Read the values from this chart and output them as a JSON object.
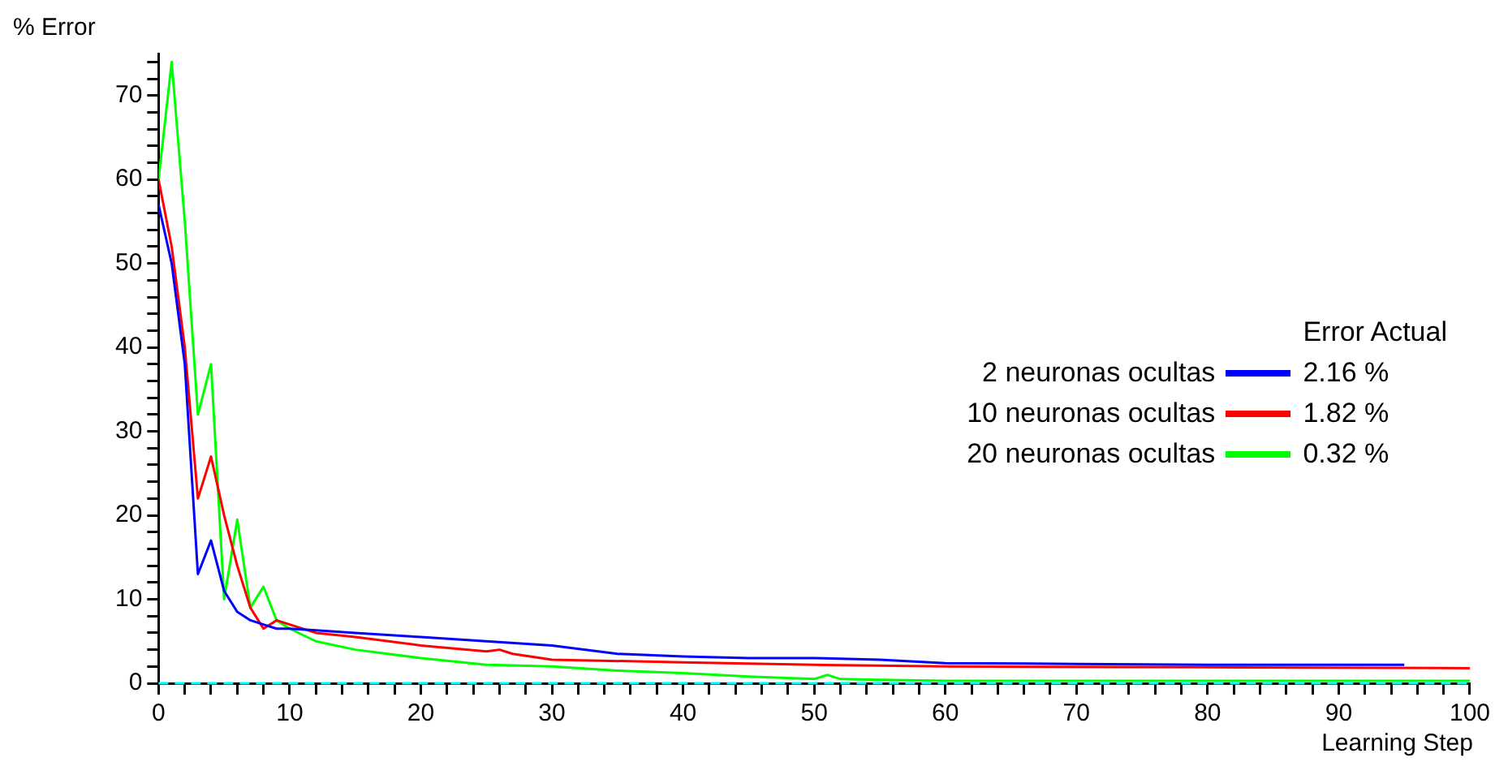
{
  "chart_data": {
    "type": "line",
    "ylabel": "% Error",
    "xlabel": "Learning Step",
    "legend_title": "Error Actual",
    "legend": "right",
    "grid": false,
    "marker": "none",
    "line_style": "solid",
    "xlim": [
      0,
      100
    ],
    "ylim": [
      0,
      75
    ],
    "xticks": [
      0,
      {
        "value": 2,
        "label": null
      },
      {
        "value": 4,
        "label": null
      },
      {
        "value": 6,
        "label": null
      },
      {
        "value": 8,
        "label": null
      },
      10,
      {
        "value": 12,
        "label": null
      },
      {
        "value": 14,
        "label": null
      },
      {
        "value": 16,
        "label": null
      },
      {
        "value": 18,
        "label": null
      },
      20,
      {
        "value": 22,
        "label": null
      },
      {
        "value": 24,
        "label": null
      },
      {
        "value": 26,
        "label": null
      },
      {
        "value": 28,
        "label": null
      },
      30,
      {
        "value": 32,
        "label": null
      },
      {
        "value": 34,
        "label": null
      },
      {
        "value": 36,
        "label": null
      },
      {
        "value": 38,
        "label": null
      },
      40,
      {
        "value": 42,
        "label": null
      },
      {
        "value": 44,
        "label": null
      },
      {
        "value": 46,
        "label": null
      },
      {
        "value": 48,
        "label": null
      },
      50,
      {
        "value": 52,
        "label": null
      },
      {
        "value": 54,
        "label": null
      },
      {
        "value": 56,
        "label": null
      },
      {
        "value": 58,
        "label": null
      },
      60,
      {
        "value": 62,
        "label": null
      },
      {
        "value": 64,
        "label": null
      },
      {
        "value": 66,
        "label": null
      },
      {
        "value": 68,
        "label": null
      },
      70,
      {
        "value": 72,
        "label": null
      },
      {
        "value": 74,
        "label": null
      },
      {
        "value": 76,
        "label": null
      },
      {
        "value": 78,
        "label": null
      },
      80,
      {
        "value": 82,
        "label": null
      },
      {
        "value": 84,
        "label": null
      },
      {
        "value": 86,
        "label": null
      },
      {
        "value": 88,
        "label": null
      },
      90,
      {
        "value": 92,
        "label": null
      },
      {
        "value": 94,
        "label": null
      },
      {
        "value": 96,
        "label": null
      },
      {
        "value": 98,
        "label": null
      },
      100
    ],
    "yticks": [
      0,
      {
        "value": 2,
        "label": null
      },
      {
        "value": 4,
        "label": null
      },
      {
        "value": 6,
        "label": null
      },
      {
        "value": 8,
        "label": null
      },
      10,
      {
        "value": 12,
        "label": null
      },
      {
        "value": 14,
        "label": null
      },
      {
        "value": 16,
        "label": null
      },
      {
        "value": 18,
        "label": null
      },
      20,
      {
        "value": 22,
        "label": null
      },
      {
        "value": 24,
        "label": null
      },
      {
        "value": 26,
        "label": null
      },
      {
        "value": 28,
        "label": null
      },
      30,
      {
        "value": 32,
        "label": null
      },
      {
        "value": 34,
        "label": null
      },
      {
        "value": 36,
        "label": null
      },
      {
        "value": 38,
        "label": null
      },
      40,
      {
        "value": 42,
        "label": null
      },
      {
        "value": 44,
        "label": null
      },
      {
        "value": 46,
        "label": null
      },
      {
        "value": 48,
        "label": null
      },
      50,
      {
        "value": 52,
        "label": null
      },
      {
        "value": 54,
        "label": null
      },
      {
        "value": 56,
        "label": null
      },
      {
        "value": 58,
        "label": null
      },
      60,
      {
        "value": 62,
        "label": null
      },
      {
        "value": 64,
        "label": null
      },
      {
        "value": 66,
        "label": null
      },
      {
        "value": 68,
        "label": null
      },
      70,
      {
        "value": 72,
        "label": null
      },
      {
        "value": 74,
        "label": null
      }
    ],
    "ref_lines": [
      {
        "axis": "y",
        "value": 0,
        "color": "#00ffff",
        "line_style": "dashed"
      }
    ],
    "annotations": [
      "2.16 %",
      "1.82 %",
      "0.32 %"
    ],
    "series": [
      {
        "name": "2 neuronas ocultas",
        "color": "#0000ff",
        "x": [
          0,
          1,
          2,
          3,
          4,
          5,
          6,
          7,
          8,
          9,
          10,
          12,
          15,
          20,
          25,
          30,
          35,
          40,
          45,
          50,
          55,
          60,
          70,
          80,
          90,
          95
        ],
        "values": [
          57,
          50,
          38,
          13,
          17,
          11,
          8.5,
          7.5,
          7,
          6.5,
          6.5,
          6.3,
          6,
          5.5,
          5,
          4.5,
          3.5,
          3.2,
          3,
          3,
          2.8,
          2.4,
          2.3,
          2.2,
          2.2,
          2.2
        ]
      },
      {
        "name": "10 neuronas ocultas",
        "color": "#ff0000",
        "x": [
          0,
          1,
          2,
          3,
          4,
          5,
          6,
          7,
          8,
          9,
          10,
          12,
          15,
          20,
          25,
          26,
          27,
          30,
          40,
          50,
          60,
          80,
          100
        ],
        "values": [
          60,
          52,
          40,
          22,
          27,
          20,
          14,
          9,
          6.5,
          7.5,
          7,
          6,
          5.5,
          4.5,
          3.8,
          4,
          3.5,
          2.8,
          2.5,
          2.2,
          2,
          1.9,
          1.8
        ]
      },
      {
        "name": "20 neuronas ocultas",
        "color": "#00ff00",
        "x": [
          0,
          1,
          2,
          3,
          4,
          5,
          6,
          7,
          8,
          9,
          10,
          12,
          15,
          20,
          25,
          30,
          35,
          40,
          45,
          50,
          51,
          52,
          55,
          60,
          100
        ],
        "values": [
          60,
          74,
          55,
          32,
          38,
          10,
          19.5,
          9,
          11.5,
          7.5,
          6.5,
          5,
          4,
          3,
          2.2,
          2,
          1.5,
          1.2,
          0.8,
          0.5,
          1,
          0.5,
          0.4,
          0.3,
          0.3
        ]
      }
    ]
  }
}
